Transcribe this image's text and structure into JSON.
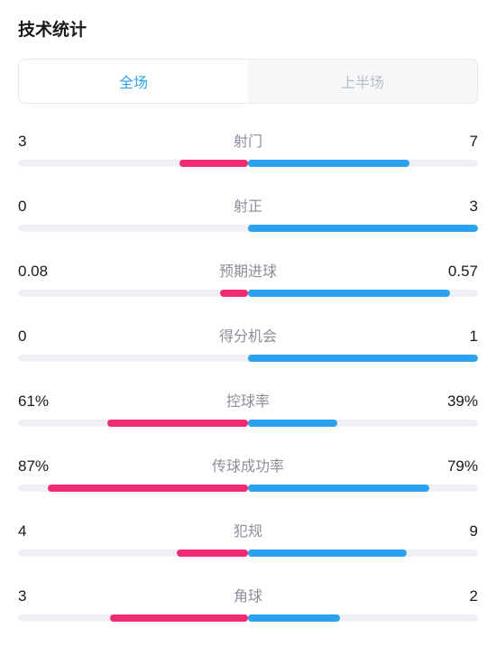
{
  "title": "技术统计",
  "tabs": {
    "items": [
      {
        "label": "全场",
        "active": true
      },
      {
        "label": "上半场",
        "active": false
      }
    ],
    "active_text_color": "#2aa2ef",
    "inactive_text_color": "#b8bcc4",
    "inactive_bg": "#f6f7f8",
    "border_color": "#e6e8eb"
  },
  "colors": {
    "left_team": "#ed2b74",
    "right_team": "#2aa2ef",
    "track_bg": "#eef0f3",
    "label_muted": "#8a8f99",
    "value_text": "#1a1a1a"
  },
  "stats": [
    {
      "name": "射门",
      "left_label": "3",
      "right_label": "7",
      "left_pct": 30,
      "right_pct": 70
    },
    {
      "name": "射正",
      "left_label": "0",
      "right_label": "3",
      "left_pct": 0,
      "right_pct": 100
    },
    {
      "name": "预期进球",
      "left_label": "0.08",
      "right_label": "0.57",
      "left_pct": 12,
      "right_pct": 88
    },
    {
      "name": "得分机会",
      "left_label": "0",
      "right_label": "1",
      "left_pct": 0,
      "right_pct": 100
    },
    {
      "name": "控球率",
      "left_label": "61%",
      "right_label": "39%",
      "left_pct": 61,
      "right_pct": 39
    },
    {
      "name": "传球成功率",
      "left_label": "87%",
      "right_label": "79%",
      "left_pct": 87,
      "right_pct": 79
    },
    {
      "name": "犯规",
      "left_label": "4",
      "right_label": "9",
      "left_pct": 31,
      "right_pct": 69
    },
    {
      "name": "角球",
      "left_label": "3",
      "right_label": "2",
      "left_pct": 60,
      "right_pct": 40
    }
  ]
}
